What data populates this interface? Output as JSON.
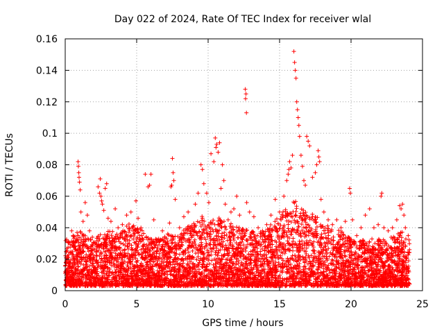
{
  "chart_data": {
    "type": "scatter",
    "title": "Day 022 of 2024, Rate Of TEC Index for receiver wlal",
    "xlabel": "GPS time / hours",
    "ylabel": "ROTI / TECUs",
    "xlim": [
      0,
      25
    ],
    "ylim": [
      0,
      0.16
    ],
    "xticks": [
      0,
      5,
      10,
      15,
      20,
      25
    ],
    "xtick_labels": [
      "0",
      "5",
      "10",
      "15",
      "20",
      "25"
    ],
    "yticks": [
      0,
      0.02,
      0.04,
      0.06,
      0.08,
      0.1,
      0.12,
      0.14,
      0.16
    ],
    "ytick_labels": [
      "0",
      "0.02",
      "0.04",
      "0.06",
      "0.08",
      "0.1",
      "0.12",
      "0.14",
      "0.16"
    ],
    "grid": true,
    "marker": "plus",
    "color": "#ff0000",
    "series": [
      {
        "name": "ROTI",
        "points": [
          [
            0.05,
            0.012
          ],
          [
            0.15,
            0.022
          ],
          [
            0.3,
            0.018
          ],
          [
            0.45,
            0.038
          ],
          [
            0.55,
            0.035
          ],
          [
            0.7,
            0.026
          ],
          [
            0.9,
            0.082
          ],
          [
            0.92,
            0.079
          ],
          [
            0.95,
            0.075
          ],
          [
            0.97,
            0.072
          ],
          [
            1.0,
            0.069
          ],
          [
            1.05,
            0.064
          ],
          [
            1.1,
            0.05
          ],
          [
            1.25,
            0.044
          ],
          [
            1.4,
            0.056
          ],
          [
            1.55,
            0.048
          ],
          [
            1.7,
            0.038
          ],
          [
            1.9,
            0.034
          ],
          [
            2.1,
            0.03
          ],
          [
            2.3,
            0.066
          ],
          [
            2.4,
            0.062
          ],
          [
            2.45,
            0.071
          ],
          [
            2.5,
            0.06
          ],
          [
            2.55,
            0.057
          ],
          [
            2.6,
            0.055
          ],
          [
            2.7,
            0.051
          ],
          [
            2.8,
            0.065
          ],
          [
            2.9,
            0.068
          ],
          [
            3.0,
            0.046
          ],
          [
            3.2,
            0.044
          ],
          [
            3.5,
            0.052
          ],
          [
            3.7,
            0.04
          ],
          [
            4.0,
            0.042
          ],
          [
            4.3,
            0.048
          ],
          [
            4.6,
            0.05
          ],
          [
            4.8,
            0.036
          ],
          [
            4.95,
            0.057
          ],
          [
            5.1,
            0.046
          ],
          [
            5.3,
            0.04
          ],
          [
            5.6,
            0.074
          ],
          [
            5.8,
            0.066
          ],
          [
            5.9,
            0.067
          ],
          [
            6.0,
            0.074
          ],
          [
            6.2,
            0.045
          ],
          [
            6.5,
            0.032
          ],
          [
            6.8,
            0.038
          ],
          [
            7.1,
            0.03
          ],
          [
            7.3,
            0.043
          ],
          [
            7.4,
            0.066
          ],
          [
            7.45,
            0.067
          ],
          [
            7.5,
            0.084
          ],
          [
            7.55,
            0.075
          ],
          [
            7.6,
            0.07
          ],
          [
            7.7,
            0.058
          ],
          [
            8.0,
            0.04
          ],
          [
            8.3,
            0.047
          ],
          [
            8.6,
            0.05
          ],
          [
            8.8,
            0.035
          ],
          [
            9.1,
            0.055
          ],
          [
            9.3,
            0.062
          ],
          [
            9.5,
            0.08
          ],
          [
            9.6,
            0.077
          ],
          [
            9.7,
            0.068
          ],
          [
            9.9,
            0.062
          ],
          [
            10.05,
            0.056
          ],
          [
            10.2,
            0.087
          ],
          [
            10.4,
            0.082
          ],
          [
            10.5,
            0.097
          ],
          [
            10.55,
            0.091
          ],
          [
            10.6,
            0.093
          ],
          [
            10.7,
            0.088
          ],
          [
            10.8,
            0.094
          ],
          [
            10.9,
            0.065
          ],
          [
            11.0,
            0.08
          ],
          [
            11.1,
            0.07
          ],
          [
            11.2,
            0.055
          ],
          [
            11.4,
            0.045
          ],
          [
            11.6,
            0.05
          ],
          [
            11.8,
            0.052
          ],
          [
            12.0,
            0.06
          ],
          [
            12.2,
            0.048
          ],
          [
            12.4,
            0.038
          ],
          [
            12.6,
            0.128
          ],
          [
            12.62,
            0.122
          ],
          [
            12.65,
            0.125
          ],
          [
            12.68,
            0.113
          ],
          [
            12.7,
            0.056
          ],
          [
            12.9,
            0.05
          ],
          [
            13.2,
            0.047
          ],
          [
            13.5,
            0.04
          ],
          [
            13.8,
            0.038
          ],
          [
            14.1,
            0.042
          ],
          [
            14.4,
            0.048
          ],
          [
            14.7,
            0.058
          ],
          [
            15.0,
            0.05
          ],
          [
            15.1,
            0.045
          ],
          [
            15.3,
            0.06
          ],
          [
            15.5,
            0.07
          ],
          [
            15.6,
            0.074
          ],
          [
            15.65,
            0.077
          ],
          [
            15.7,
            0.082
          ],
          [
            15.8,
            0.078
          ],
          [
            15.9,
            0.086
          ],
          [
            16.0,
            0.152
          ],
          [
            16.05,
            0.145
          ],
          [
            16.1,
            0.14
          ],
          [
            16.15,
            0.135
          ],
          [
            16.2,
            0.12
          ],
          [
            16.25,
            0.115
          ],
          [
            16.3,
            0.11
          ],
          [
            16.35,
            0.105
          ],
          [
            16.4,
            0.098
          ],
          [
            16.5,
            0.086
          ],
          [
            16.6,
            0.079
          ],
          [
            16.7,
            0.07
          ],
          [
            16.8,
            0.067
          ],
          [
            16.9,
            0.098
          ],
          [
            17.0,
            0.095
          ],
          [
            17.1,
            0.092
          ],
          [
            17.3,
            0.072
          ],
          [
            17.5,
            0.075
          ],
          [
            17.6,
            0.08
          ],
          [
            17.7,
            0.089
          ],
          [
            17.75,
            0.085
          ],
          [
            17.8,
            0.082
          ],
          [
            17.9,
            0.058
          ],
          [
            18.1,
            0.05
          ],
          [
            18.4,
            0.045
          ],
          [
            18.7,
            0.042
          ],
          [
            19.0,
            0.045
          ],
          [
            19.3,
            0.04
          ],
          [
            19.6,
            0.044
          ],
          [
            19.9,
            0.065
          ],
          [
            19.95,
            0.062
          ],
          [
            20.1,
            0.045
          ],
          [
            20.4,
            0.035
          ],
          [
            20.7,
            0.04
          ],
          [
            21.0,
            0.048
          ],
          [
            21.3,
            0.052
          ],
          [
            21.6,
            0.04
          ],
          [
            21.9,
            0.042
          ],
          [
            22.1,
            0.06
          ],
          [
            22.15,
            0.062
          ],
          [
            22.3,
            0.04
          ],
          [
            22.6,
            0.038
          ],
          [
            22.9,
            0.04
          ],
          [
            23.2,
            0.045
          ],
          [
            23.4,
            0.054
          ],
          [
            23.5,
            0.052
          ],
          [
            23.6,
            0.055
          ],
          [
            23.7,
            0.048
          ],
          [
            23.8,
            0.04
          ],
          [
            24.0,
            0.035
          ]
        ],
        "baseline_profile": [
          [
            0.0,
            0.03
          ],
          [
            0.5,
            0.032
          ],
          [
            1.0,
            0.035
          ],
          [
            1.5,
            0.032
          ],
          [
            2.0,
            0.03
          ],
          [
            2.5,
            0.034
          ],
          [
            3.0,
            0.036
          ],
          [
            3.5,
            0.034
          ],
          [
            4.0,
            0.035
          ],
          [
            4.5,
            0.04
          ],
          [
            5.0,
            0.038
          ],
          [
            5.5,
            0.035
          ],
          [
            6.0,
            0.03
          ],
          [
            6.5,
            0.03
          ],
          [
            7.0,
            0.032
          ],
          [
            7.5,
            0.035
          ],
          [
            8.0,
            0.032
          ],
          [
            8.5,
            0.038
          ],
          [
            9.0,
            0.042
          ],
          [
            9.5,
            0.045
          ],
          [
            10.0,
            0.04
          ],
          [
            10.5,
            0.045
          ],
          [
            11.0,
            0.042
          ],
          [
            11.5,
            0.04
          ],
          [
            12.0,
            0.038
          ],
          [
            12.5,
            0.036
          ],
          [
            13.0,
            0.035
          ],
          [
            13.5,
            0.034
          ],
          [
            14.0,
            0.036
          ],
          [
            14.5,
            0.04
          ],
          [
            15.0,
            0.045
          ],
          [
            15.5,
            0.05
          ],
          [
            16.0,
            0.055
          ],
          [
            16.5,
            0.05
          ],
          [
            17.0,
            0.048
          ],
          [
            17.5,
            0.045
          ],
          [
            18.0,
            0.04
          ],
          [
            18.5,
            0.038
          ],
          [
            19.0,
            0.036
          ],
          [
            19.5,
            0.034
          ],
          [
            20.0,
            0.03
          ],
          [
            20.5,
            0.028
          ],
          [
            21.0,
            0.03
          ],
          [
            21.5,
            0.03
          ],
          [
            22.0,
            0.03
          ],
          [
            22.5,
            0.03
          ],
          [
            23.0,
            0.032
          ],
          [
            23.5,
            0.035
          ],
          [
            24.0,
            0.03
          ]
        ]
      }
    ]
  }
}
